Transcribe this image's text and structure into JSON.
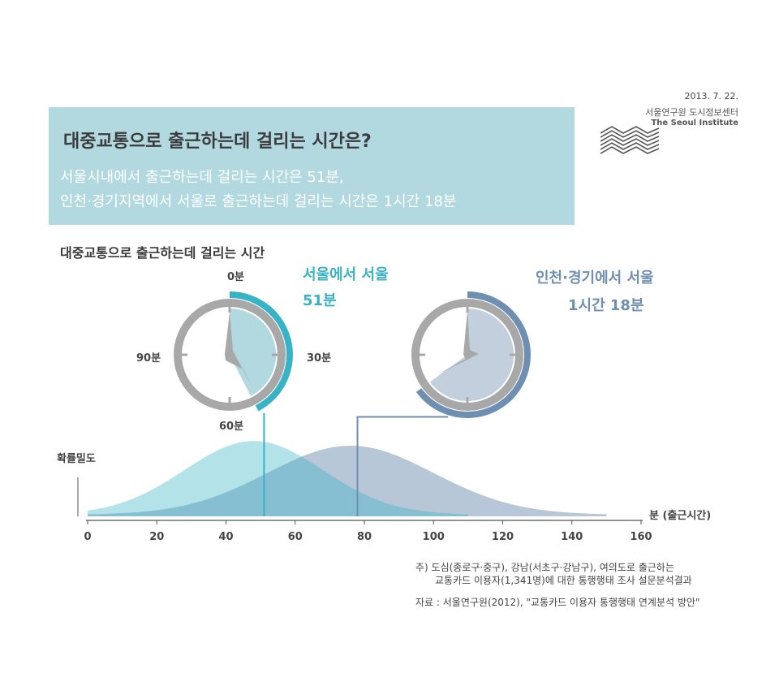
{
  "meta": {
    "date": "2013. 7. 22.",
    "org_kr": "서울연구원 도시정보센터",
    "org_en": "The Seoul Institute"
  },
  "header": {
    "title": "대중교통으로 출근하는데 걸리는 시간은?",
    "line1": "서울시내에서 출근하는데 걸리는 시간은 51분,",
    "line2": "인천·경기지역에서 서울로 출근하는데 걸리는 시간은 1시간 18분"
  },
  "section_title": "대중교통으로 출근하는데 걸리는 시간",
  "clock_labels": {
    "top": "0분",
    "right": "30분",
    "bottom": "60분",
    "left": "90분"
  },
  "seoul": {
    "name": "서울에서 서울",
    "time": "51분",
    "minutes": 51
  },
  "gyeonggi": {
    "name": "인천·경기에서 서울",
    "time": "1시간 18분",
    "minutes": 78
  },
  "colors": {
    "seoul": "#36b3c6",
    "seoul_fill": "#b2d8e0",
    "gyeonggi": "#6f8fb2",
    "gyeonggi_fill": "#c2cfdc",
    "clock": "#a8a8a8",
    "header_bg": "#b2d8e0"
  },
  "chart_data": {
    "type": "area",
    "ylabel": "확률밀도",
    "xlabel": "분 (출근시간)",
    "xlim": [
      0,
      160
    ],
    "x_ticks": [
      0,
      20,
      40,
      60,
      80,
      100,
      120,
      140,
      160
    ],
    "series": [
      {
        "name": "서울에서 서울",
        "mean": 51,
        "peak_x": 48,
        "peak_density": 0.047,
        "range": [
          0,
          110
        ]
      },
      {
        "name": "인천·경기에서 서울",
        "mean": 78,
        "peak_x": 76,
        "peak_density": 0.044,
        "range": [
          0,
          150
        ]
      }
    ]
  },
  "notes": {
    "n1": "주) 도심(종로구·중구), 강남(서초구·강남구), 여의도로 출근하는",
    "n2": "교통카드 이용자(1,341명)에 대한 통행행태 조사 설문분석결과",
    "n3": "자료 : 서울연구원(2012), \"교통카드 이용자 통행행태 연계분석 방안\""
  }
}
